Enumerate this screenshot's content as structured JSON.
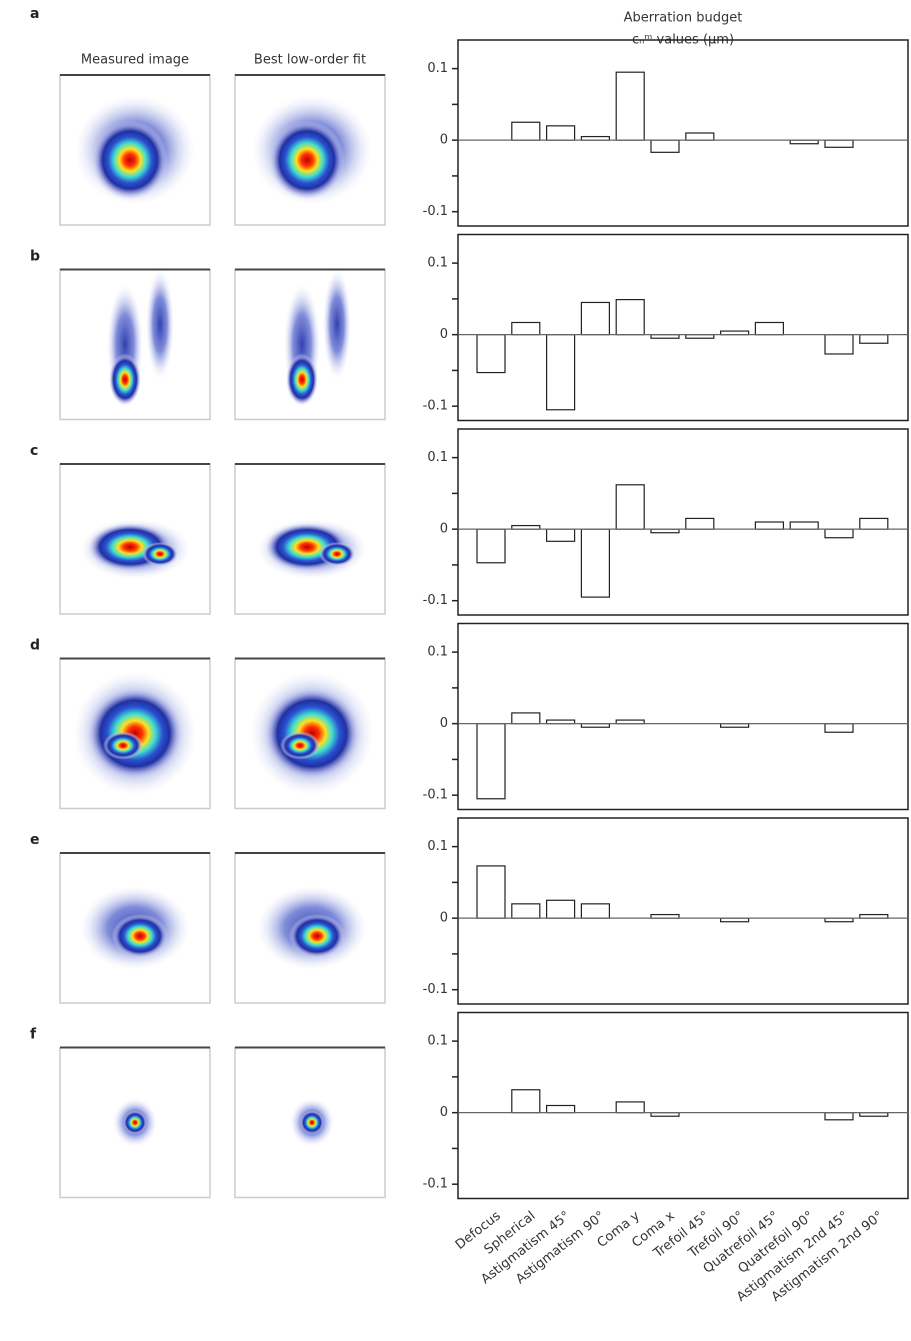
{
  "images": {
    "headers": [
      "Measured image",
      "Best low-order fit"
    ]
  },
  "chart_data": [
    {
      "type": "bar",
      "label": "a",
      "title": "Aberration budget",
      "subtitle": "cₙᵐ values (μm)",
      "values": [
        0,
        0.025,
        0.02,
        0.005,
        0.095,
        -0.017,
        0.01,
        0,
        0,
        -0.005,
        -0.01,
        0
      ],
      "ylim": [
        -0.12,
        0.14
      ],
      "yticks": [
        -0.1,
        0,
        0.1
      ],
      "yminorticks": [
        -0.05,
        0.05
      ],
      "color": "#ffffff",
      "edgecolor": "#222222"
    },
    {
      "type": "bar",
      "label": "b",
      "values": [
        -0.053,
        0.017,
        -0.105,
        0.045,
        0.049,
        -0.005,
        -0.005,
        0.005,
        0.017,
        0,
        -0.027,
        -0.012
      ],
      "ylim": [
        -0.12,
        0.14
      ],
      "yticks": [
        -0.1,
        0,
        0.1
      ],
      "yminorticks": [
        -0.05,
        0.05
      ],
      "color": "#ffffff",
      "edgecolor": "#222222"
    },
    {
      "type": "bar",
      "label": "c",
      "values": [
        -0.047,
        0.005,
        -0.017,
        -0.095,
        0.062,
        -0.005,
        0.015,
        0,
        0.01,
        0.01,
        -0.012,
        0.015
      ],
      "ylim": [
        -0.12,
        0.14
      ],
      "yticks": [
        -0.1,
        0,
        0.1
      ],
      "yminorticks": [
        -0.05,
        0.05
      ],
      "color": "#ffffff",
      "edgecolor": "#222222"
    },
    {
      "type": "bar",
      "label": "d",
      "values": [
        -0.105,
        0.015,
        0.005,
        -0.005,
        0.005,
        0,
        0,
        -0.005,
        0,
        0,
        -0.012,
        0
      ],
      "ylim": [
        -0.12,
        0.14
      ],
      "yticks": [
        -0.1,
        0,
        0.1
      ],
      "yminorticks": [
        -0.05,
        0.05
      ],
      "color": "#ffffff",
      "edgecolor": "#222222"
    },
    {
      "type": "bar",
      "label": "e",
      "values": [
        0.073,
        0.02,
        0.025,
        0.02,
        0,
        0.005,
        0,
        -0.005,
        0,
        0,
        -0.005,
        0.005
      ],
      "ylim": [
        -0.12,
        0.14
      ],
      "yticks": [
        -0.1,
        0,
        0.1
      ],
      "yminorticks": [
        -0.05,
        0.05
      ],
      "color": "#ffffff",
      "edgecolor": "#222222"
    },
    {
      "type": "bar",
      "label": "f",
      "categories": [
        "Defocus",
        "Spherical",
        "Astigmatism 45°",
        "Astigmatism 90°",
        "Coma y",
        "Coma x",
        "Trefoil 45°",
        "Trefoil 90°",
        "Quatrefoil 45°",
        "Quatrefoil 90°",
        "Astigmatism 2nd 45°",
        "Astigmatism 2nd 90°"
      ],
      "values": [
        0,
        0.032,
        0.01,
        0,
        0.015,
        -0.005,
        0,
        0,
        0,
        0,
        -0.01,
        -0.005
      ],
      "ylim": [
        -0.12,
        0.14
      ],
      "yticks": [
        -0.1,
        0,
        0.1
      ],
      "yminorticks": [
        -0.05,
        0.05
      ],
      "color": "#ffffff",
      "edgecolor": "#222222"
    }
  ]
}
